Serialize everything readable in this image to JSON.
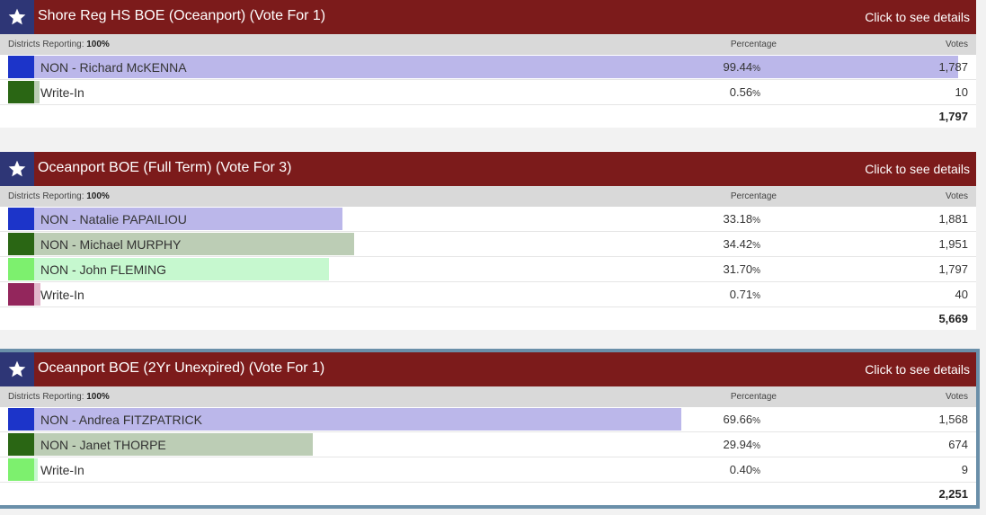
{
  "labels": {
    "details": "Click to see details",
    "districts": "Districts Reporting:",
    "percentage": "Percentage",
    "votes": "Votes",
    "pct_sign": "%"
  },
  "races": [
    {
      "title": "Shore Reg HS BOE (Oceanport) (Vote For 1)",
      "reporting": "100%",
      "total": "1,797",
      "candidates": [
        {
          "name": "NON - Richard McKENNA",
          "pct": "99.44",
          "votes": "1,787",
          "share": 99.44,
          "color": "#1c34c9",
          "barColor": "#bbb7ea"
        },
        {
          "name": "Write-In",
          "pct": "0.56",
          "votes": "10",
          "share": 0.56,
          "color": "#2a6614",
          "barColor": "#bccdb5"
        }
      ]
    },
    {
      "title": "Oceanport BOE (Full Term) (Vote For 3)",
      "reporting": "100%",
      "total": "5,669",
      "candidates": [
        {
          "name": "NON - Natalie PAPAILIOU",
          "pct": "33.18",
          "votes": "1,881",
          "share": 33.18,
          "color": "#1c34c9",
          "barColor": "#bbb7ea"
        },
        {
          "name": "NON - Michael MURPHY",
          "pct": "34.42",
          "votes": "1,951",
          "share": 34.42,
          "color": "#2a6614",
          "barColor": "#bccdb5"
        },
        {
          "name": "NON - John FLEMING",
          "pct": "31.70",
          "votes": "1,797",
          "share": 31.7,
          "color": "#7df06e",
          "barColor": "#c6f8cf"
        },
        {
          "name": "Write-In",
          "pct": "0.71",
          "votes": "40",
          "share": 0.71,
          "color": "#93265c",
          "barColor": "#e3b8cc"
        }
      ]
    },
    {
      "title": "Oceanport BOE (2Yr Unexpired) (Vote For 1)",
      "reporting": "100%",
      "total": "2,251",
      "candidates": [
        {
          "name": "NON - Andrea FITZPATRICK",
          "pct": "69.66",
          "votes": "1,568",
          "share": 69.66,
          "color": "#1c34c9",
          "barColor": "#bbb7ea"
        },
        {
          "name": "NON - Janet THORPE",
          "pct": "29.94",
          "votes": "674",
          "share": 29.94,
          "color": "#2a6614",
          "barColor": "#bccdb5"
        },
        {
          "name": "Write-In",
          "pct": "0.40",
          "votes": "9",
          "share": 0.4,
          "color": "#7df06e",
          "barColor": "#c6f8cf"
        }
      ]
    }
  ]
}
